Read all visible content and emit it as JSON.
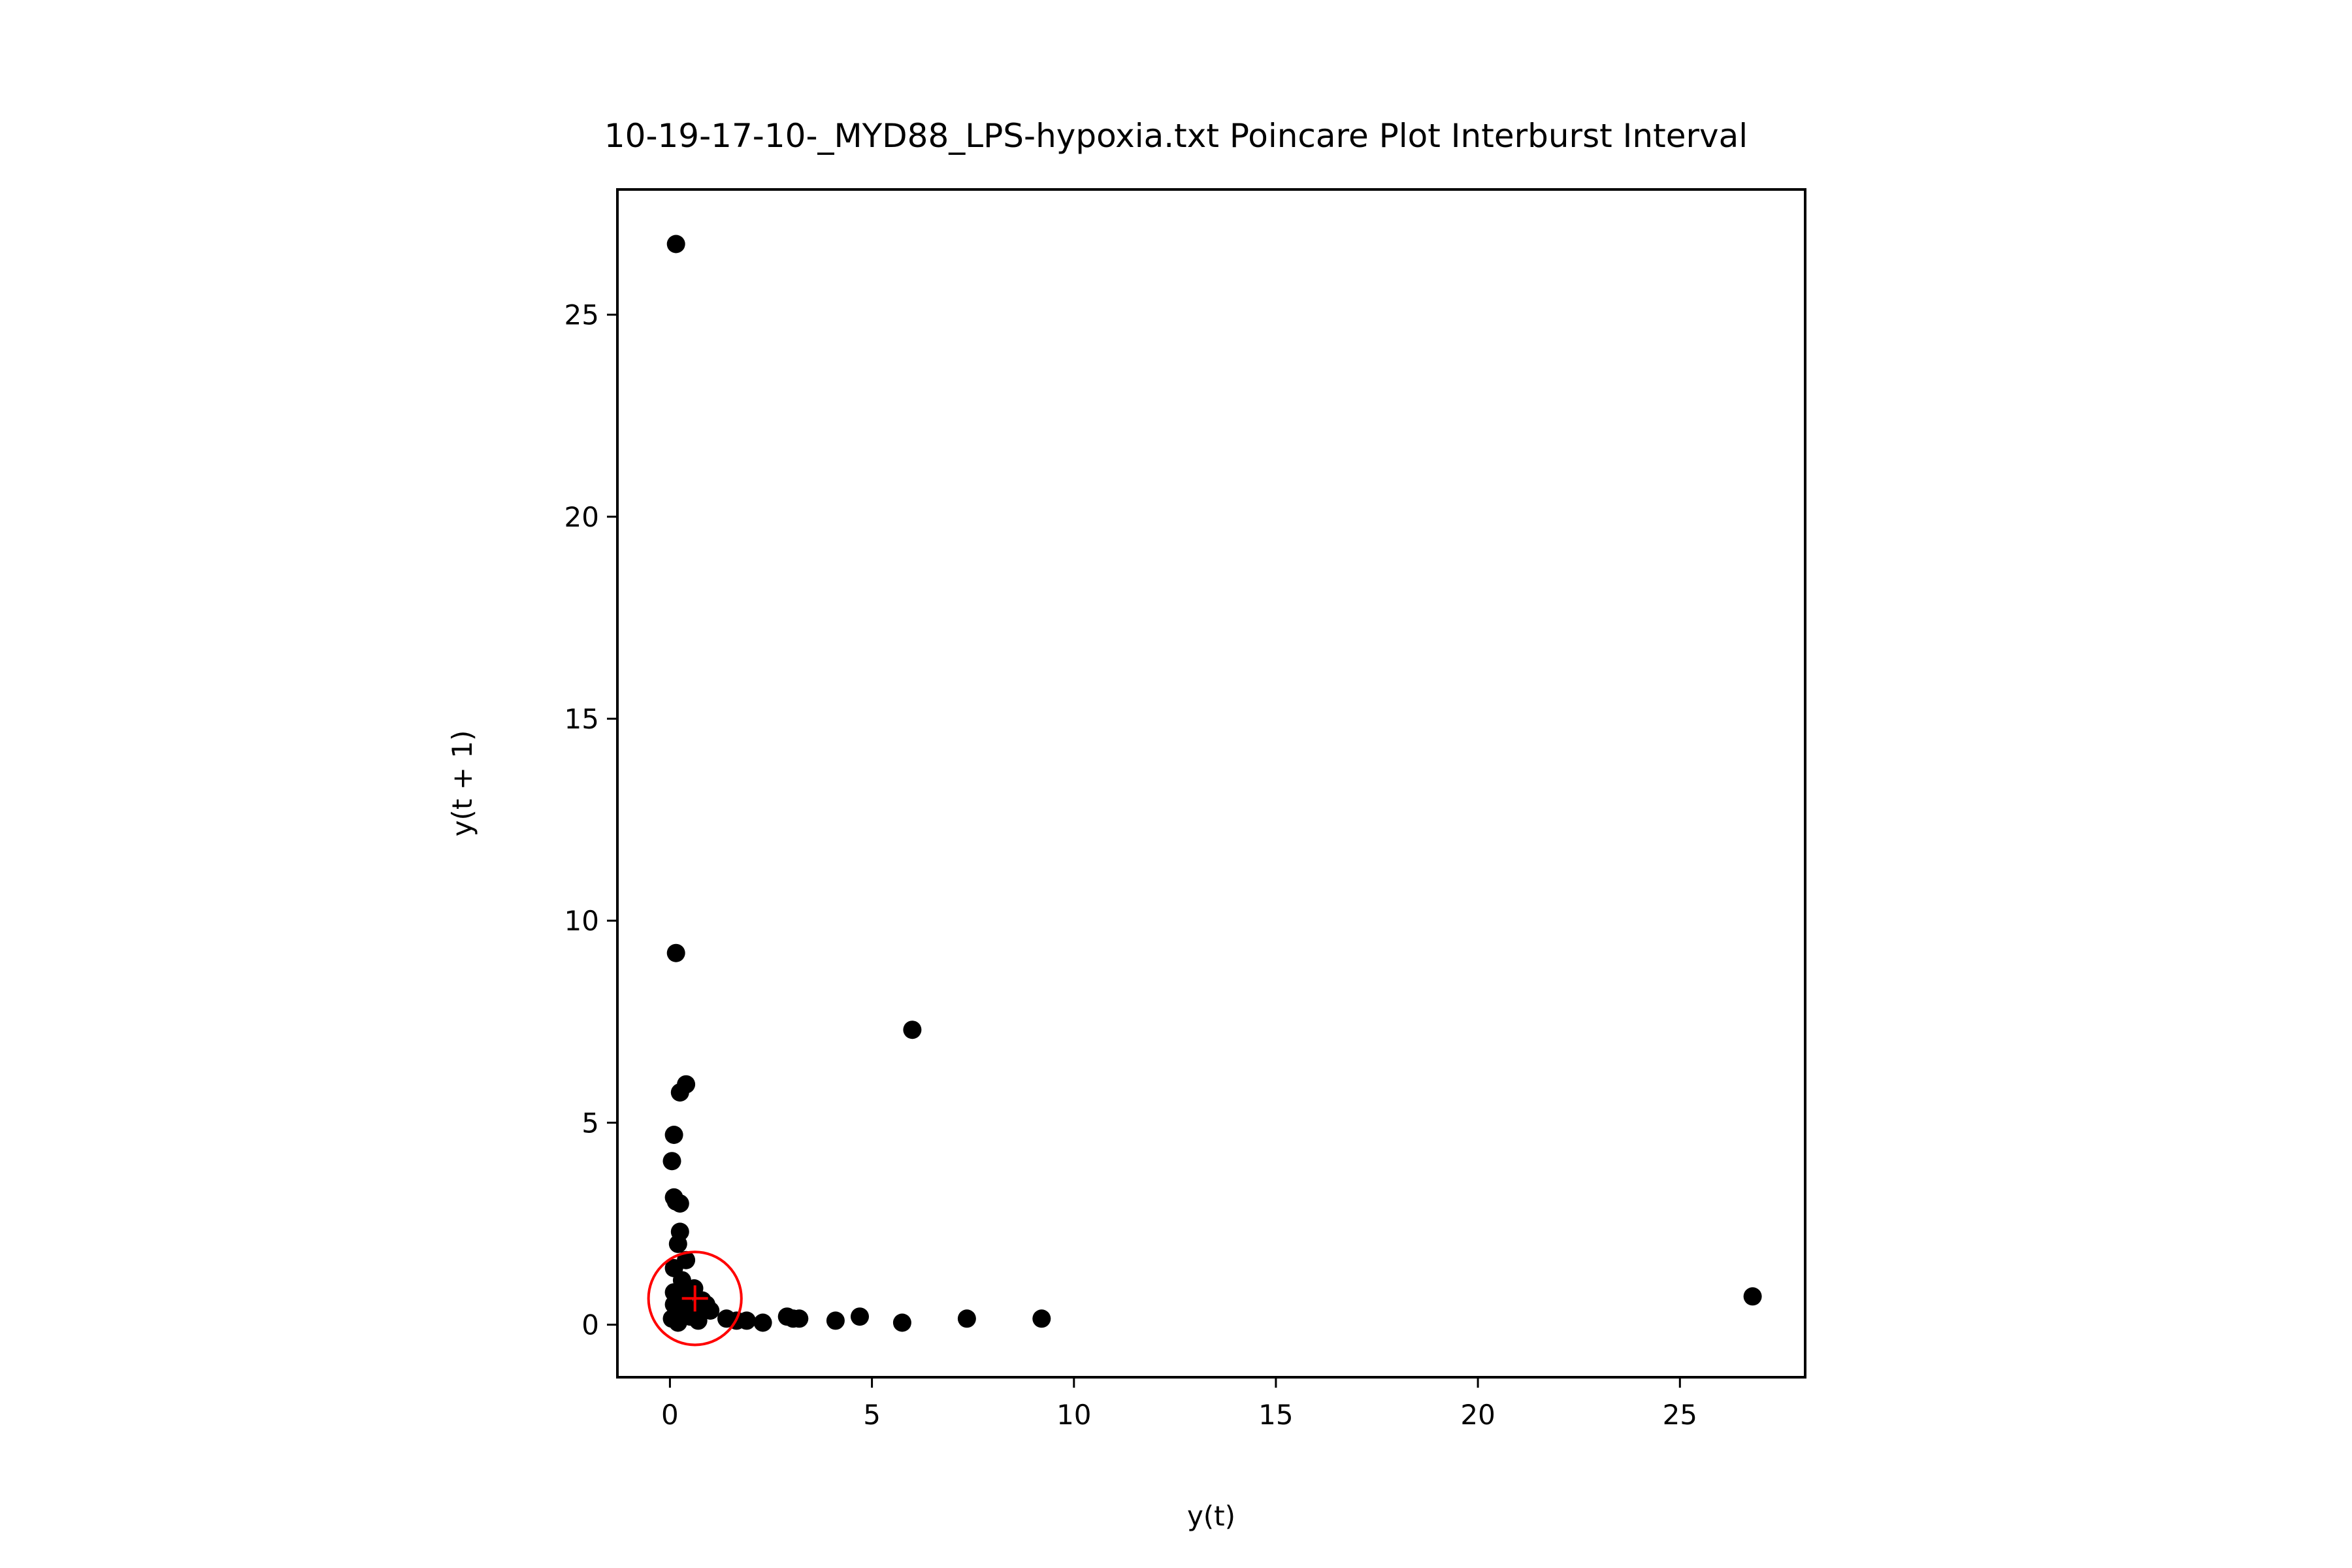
{
  "chart_data": {
    "type": "scatter",
    "title": "10-19-17-10-_MYD88_LPS-hypoxia.txt Poincare Plot Interburst Interval",
    "xlabel": "y(t)",
    "ylabel": "y(t + 1)",
    "xlim": [
      -1.3,
      28.1
    ],
    "ylim": [
      -1.3,
      28.1
    ],
    "xticks": [
      0,
      5,
      10,
      15,
      20,
      25
    ],
    "yticks": [
      0,
      5,
      10,
      15,
      20,
      25
    ],
    "grid": false,
    "legend": "none",
    "point_color": "#000000",
    "marker_color": "#ff0000",
    "series": [
      {
        "points": [
          [
            0.15,
            26.75
          ],
          [
            0.15,
            9.2
          ],
          [
            6.0,
            7.3
          ],
          [
            0.4,
            5.95
          ],
          [
            0.25,
            5.75
          ],
          [
            0.1,
            4.7
          ],
          [
            0.05,
            4.05
          ],
          [
            0.1,
            3.15
          ],
          [
            0.25,
            3.0
          ],
          [
            0.15,
            3.05
          ],
          [
            0.25,
            2.3
          ],
          [
            0.2,
            2.0
          ],
          [
            0.4,
            1.6
          ],
          [
            0.1,
            1.4
          ],
          [
            0.3,
            1.1
          ],
          [
            0.1,
            0.8
          ],
          [
            0.3,
            0.75
          ],
          [
            0.45,
            0.85
          ],
          [
            0.6,
            0.9
          ],
          [
            0.8,
            0.6
          ],
          [
            0.9,
            0.5
          ],
          [
            0.1,
            0.5
          ],
          [
            0.3,
            0.3
          ],
          [
            0.5,
            0.2
          ],
          [
            0.05,
            0.15
          ],
          [
            0.2,
            0.05
          ],
          [
            0.7,
            0.1
          ],
          [
            1.0,
            0.35
          ],
          [
            1.4,
            0.15
          ],
          [
            1.65,
            0.1
          ],
          [
            1.9,
            0.1
          ],
          [
            2.3,
            0.05
          ],
          [
            2.9,
            0.2
          ],
          [
            3.05,
            0.15
          ],
          [
            3.2,
            0.15
          ],
          [
            4.1,
            0.1
          ],
          [
            4.7,
            0.2
          ],
          [
            5.75,
            0.05
          ],
          [
            7.35,
            0.15
          ],
          [
            9.2,
            0.15
          ],
          [
            26.8,
            0.7
          ],
          [
            0.35,
            0.55
          ],
          [
            0.55,
            0.35
          ],
          [
            0.75,
            0.3
          ]
        ]
      }
    ],
    "centroid": {
      "x": 0.62,
      "y": 0.65,
      "radius": 1.15
    }
  }
}
